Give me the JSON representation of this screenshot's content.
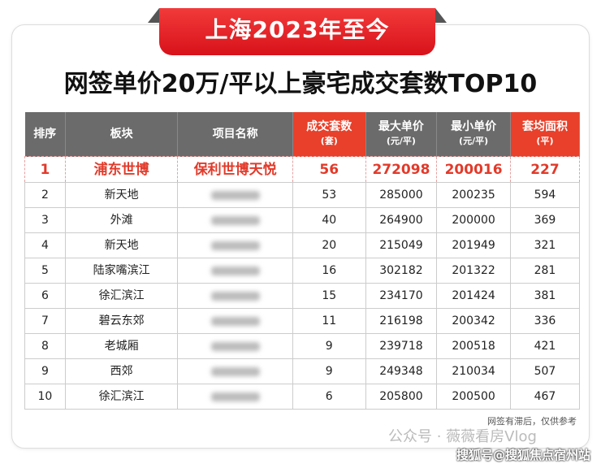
{
  "banner": "上海2023年至今",
  "title": "网签单价20万/平以上豪宅成交套数TOP10",
  "columns": [
    {
      "label": "排序",
      "unit": ""
    },
    {
      "label": "板块",
      "unit": ""
    },
    {
      "label": "项目名称",
      "unit": ""
    },
    {
      "label": "成交套数",
      "unit": "(套)",
      "highlight": true
    },
    {
      "label": "最大单价",
      "unit": "(元/平)"
    },
    {
      "label": "最小单价",
      "unit": "(元/平)"
    },
    {
      "label": "套均面积",
      "unit": "(平)",
      "highlight": true
    }
  ],
  "rows": [
    [
      "1",
      "浦东世博",
      "保利世博天悦",
      "56",
      "272098",
      "200016",
      "227"
    ],
    [
      "2",
      "新天地",
      "",
      "53",
      "285000",
      "200235",
      "594"
    ],
    [
      "3",
      "外滩",
      "",
      "40",
      "264900",
      "200000",
      "369"
    ],
    [
      "4",
      "新天地",
      "",
      "20",
      "215049",
      "201949",
      "321"
    ],
    [
      "5",
      "陆家嘴滨江",
      "",
      "16",
      "302182",
      "201322",
      "281"
    ],
    [
      "6",
      "徐汇滨江",
      "",
      "15",
      "234170",
      "201424",
      "381"
    ],
    [
      "7",
      "碧云东郊",
      "",
      "11",
      "216198",
      "200342",
      "336"
    ],
    [
      "8",
      "老城厢",
      "",
      "9",
      "239718",
      "200518",
      "421"
    ],
    [
      "9",
      "西郊",
      "",
      "9",
      "249348",
      "210034",
      "507"
    ],
    [
      "10",
      "徐汇滨江",
      "",
      "6",
      "205800",
      "200500",
      "467"
    ]
  ],
  "note": "网签有滞后，仅供参考",
  "watermark1": "公众号 · 薇薇看房Vlog",
  "watermark2": "搜狐号@搜狐焦点宿州站",
  "colors": {
    "accent": "#e23a2a",
    "header": "#6b6b6b"
  }
}
